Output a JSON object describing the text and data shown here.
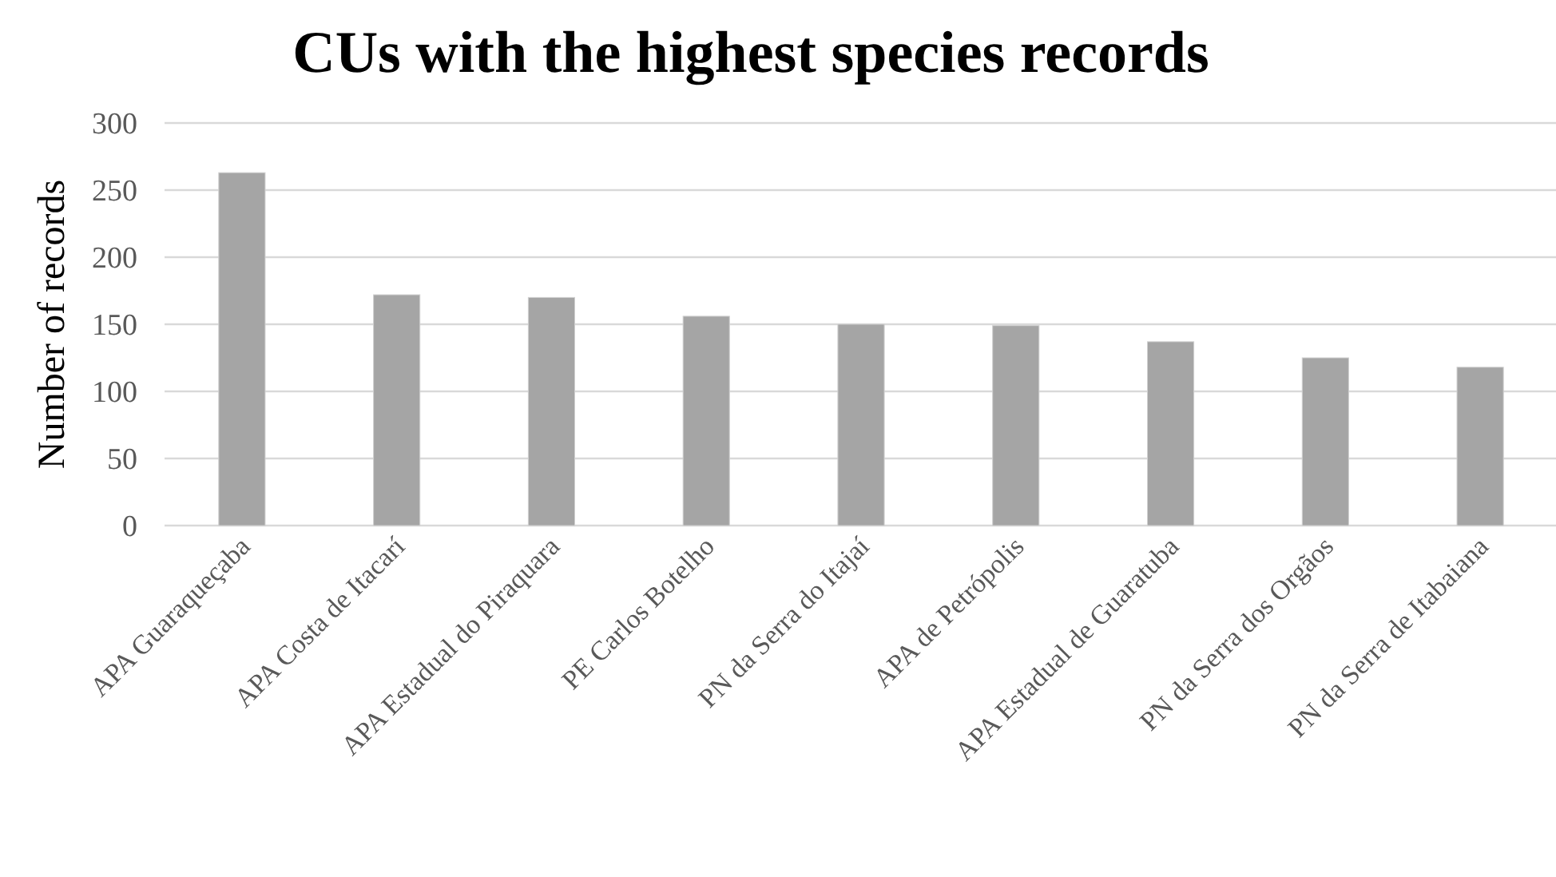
{
  "chart_data": {
    "type": "bar",
    "title": "CUs with the highest species records",
    "ylabel": "Number of records",
    "categories": [
      "APA Guaraqueçaba",
      "APA Costa de Itacarí",
      "APA Estadual do Piraquara",
      "PE Carlos Botelho",
      "PN da Serra do Itajaí",
      "APA de Petrópolis",
      "APA Estadual de Guaratuba",
      "PN da Serra dos Orgãos",
      "PN da Serra de Itabaiana"
    ],
    "values": [
      263,
      172,
      170,
      156,
      150,
      149,
      137,
      125,
      118
    ],
    "color": "#a5a5a5",
    "ylim": [
      0,
      300
    ],
    "yticks": [
      0,
      50,
      100,
      150,
      200,
      250,
      300
    ],
    "grid": "y"
  }
}
